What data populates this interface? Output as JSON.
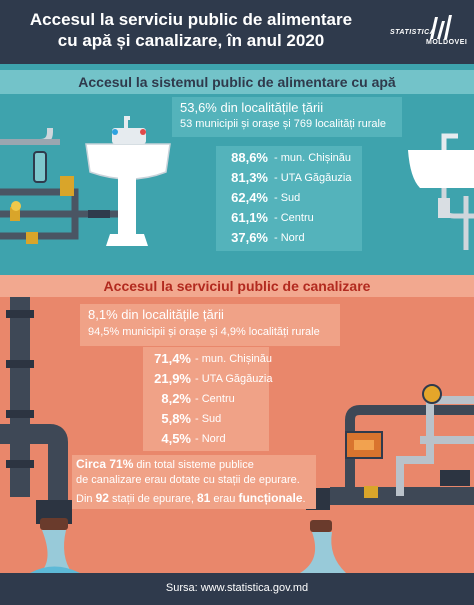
{
  "header": {
    "title_line1": "Accesul la serviciu public de alimentare",
    "title_line2": "cu apă și canalizare, în anul 2020",
    "logo_top": "STATISTICA",
    "logo_bottom": "MOLDOVEI"
  },
  "water": {
    "section_title": "Accesul la sistemul public de alimentare cu apă",
    "main_line1": "53,6% din localitățile țării",
    "main_line2": "53 municipii și orașe și 769 localități rurale",
    "regions": [
      {
        "pct": "88,6%",
        "label": "- mun. Chișinău"
      },
      {
        "pct": "81,3%",
        "label": "- UTA Găgăuzia"
      },
      {
        "pct": "62,4%",
        "label": "- Sud"
      },
      {
        "pct": "61,1%",
        "label": "- Centru"
      },
      {
        "pct": "37,6%",
        "label": "- Nord"
      }
    ]
  },
  "sewer": {
    "section_title": "Accesul la serviciul public de canalizare",
    "main_line1": "8,1% din localitățile țării",
    "main_line2": "94,5% municipii și orașe și 4,9% localități rurale",
    "regions": [
      {
        "pct": "71,4%",
        "label": "- mun. Chișinău"
      },
      {
        "pct": "21,9%",
        "label": "- UTA Găgăuzia"
      },
      {
        "pct": "8,2%",
        "label": "- Centru"
      },
      {
        "pct": "5,8%",
        "label": "- Sud"
      },
      {
        "pct": "4,5%",
        "label": "- Nord"
      }
    ],
    "note": {
      "l1_bold": "Circa 71%",
      "l1_rest": " din total sisteme publice",
      "l2": "de canalizare erau dotate cu stații de epurare.",
      "l3_a": "Din ",
      "l3_b": "92",
      "l3_c": " stații de epurare, ",
      "l3_d": "81",
      "l3_e": " erau ",
      "l3_f": "funcționale",
      "l3_g": "."
    }
  },
  "footer": {
    "source": "Sursa: www.statistica.gov.md"
  },
  "colors": {
    "dark": "#2f3a4c",
    "water": "#3ea3ad",
    "sewer": "#e9876b",
    "sewer_title": "#b22a1f"
  }
}
